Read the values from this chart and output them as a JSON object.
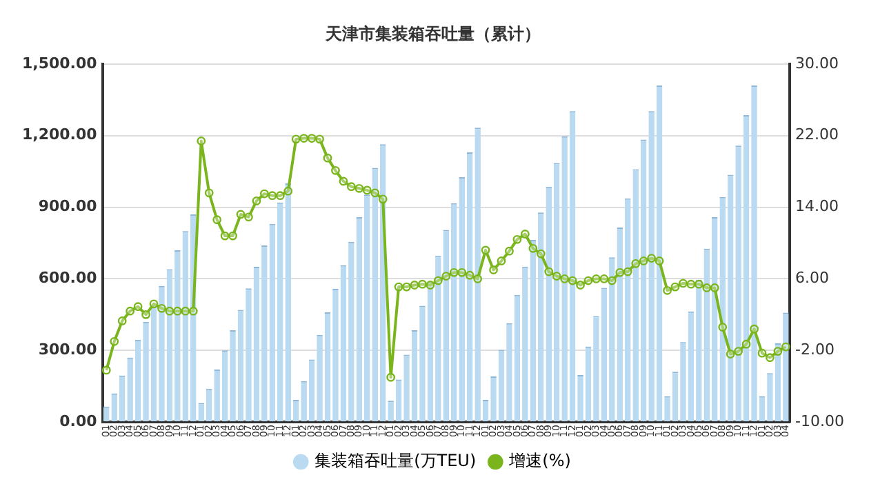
{
  "chart_data": {
    "type": "bar",
    "title": "天津市集装箱吞吐量（累计）",
    "categories": [
      "01",
      "02",
      "03",
      "04",
      "05",
      "06",
      "07",
      "08",
      "09",
      "10",
      "11",
      "12",
      "01",
      "02",
      "03",
      "04",
      "05",
      "06",
      "07",
      "08",
      "09",
      "10",
      "11",
      "12",
      "01",
      "02",
      "03",
      "04",
      "05",
      "06",
      "07",
      "08",
      "09",
      "10",
      "11",
      "12",
      "01",
      "02",
      "03",
      "04",
      "05",
      "06",
      "07",
      "08",
      "09",
      "10",
      "11",
      "12",
      "01",
      "02",
      "03",
      "04",
      "05",
      "06",
      "07",
      "08",
      "09",
      "10",
      "11",
      "12",
      "01",
      "02",
      "03",
      "04",
      "05",
      "06",
      "07",
      "08",
      "09",
      "10",
      "11",
      "01",
      "02",
      "03",
      "04",
      "05",
      "06",
      "07",
      "08",
      "09",
      "10",
      "11",
      "12",
      "01",
      "02",
      "03",
      "04"
    ],
    "series": [
      {
        "name": "集装箱吞吐量(万TEU)",
        "color": "#b9daf1",
        "values": [
          65,
          120,
          195,
          270,
          345,
          420,
          490,
          570,
          640,
          720,
          800,
          870,
          80,
          140,
          220,
          300,
          385,
          470,
          560,
          650,
          740,
          830,
          920,
          1000,
          93,
          172,
          262,
          365,
          460,
          558,
          657,
          755,
          858,
          953,
          1065,
          1164,
          89,
          178,
          282,
          385,
          487,
          586,
          696,
          805,
          917,
          1026,
          1130,
          1233,
          93,
          191,
          302,
          414,
          533,
          651,
          763,
          878,
          986,
          1085,
          1197,
          1302,
          197,
          316,
          444,
          562,
          690,
          815,
          937,
          1059,
          1183,
          1302,
          1410,
          108,
          211,
          335,
          463,
          596,
          726,
          858,
          943,
          1036,
          1158,
          1286,
          1410,
          108,
          205,
          330,
          458
        ]
      },
      {
        "name": "增速(%)",
        "type": "line",
        "axis": "y2",
        "color": "#7ab51d",
        "values": [
          -4.2,
          -1.0,
          1.3,
          2.4,
          2.9,
          2.0,
          3.2,
          2.7,
          2.4,
          2.4,
          2.4,
          2.4,
          21.4,
          15.6,
          12.6,
          10.8,
          10.8,
          13.2,
          12.9,
          14.7,
          15.5,
          15.3,
          15.3,
          15.8,
          21.6,
          21.7,
          21.7,
          21.6,
          19.5,
          18.1,
          16.9,
          16.3,
          16.1,
          15.9,
          15.6,
          14.9,
          -5.0,
          5.1,
          5.1,
          5.3,
          5.4,
          5.3,
          5.8,
          6.3,
          6.7,
          6.7,
          6.4,
          6.0,
          9.2,
          7.0,
          8.0,
          9.1,
          10.4,
          11.0,
          9.4,
          8.8,
          6.8,
          6.3,
          6.0,
          5.8,
          5.3,
          5.8,
          6.0,
          6.0,
          5.8,
          6.7,
          6.8,
          7.7,
          8.0,
          8.3,
          8.0,
          4.7,
          5.1,
          5.5,
          5.4,
          5.4,
          5.0,
          5.0,
          0.6,
          -2.4,
          -2.1,
          -1.3,
          0.4,
          -2.3,
          -2.8,
          -2.1,
          -1.6
        ]
      }
    ],
    "ylim": [
      0,
      1500
    ],
    "yticks": [
      {
        "value": 0,
        "label": "0.00"
      },
      {
        "value": 300,
        "label": "300.00"
      },
      {
        "value": 600,
        "label": "600.00"
      },
      {
        "value": 900,
        "label": "900.00"
      },
      {
        "value": 1200,
        "label": "1,200.00"
      },
      {
        "value": 1500,
        "label": "1,500.00"
      }
    ],
    "y2lim": [
      -10,
      30
    ],
    "y2ticks": [
      {
        "value": -10,
        "label": "-10.00"
      },
      {
        "value": -2,
        "label": "-2.00"
      },
      {
        "value": 6,
        "label": "6.00"
      },
      {
        "value": 14,
        "label": "14.00"
      },
      {
        "value": 22,
        "label": "22.00"
      },
      {
        "value": 30,
        "label": "30.00"
      }
    ],
    "grid": "y",
    "legend": "bottom",
    "marker": "circle",
    "line_style": "solid"
  }
}
